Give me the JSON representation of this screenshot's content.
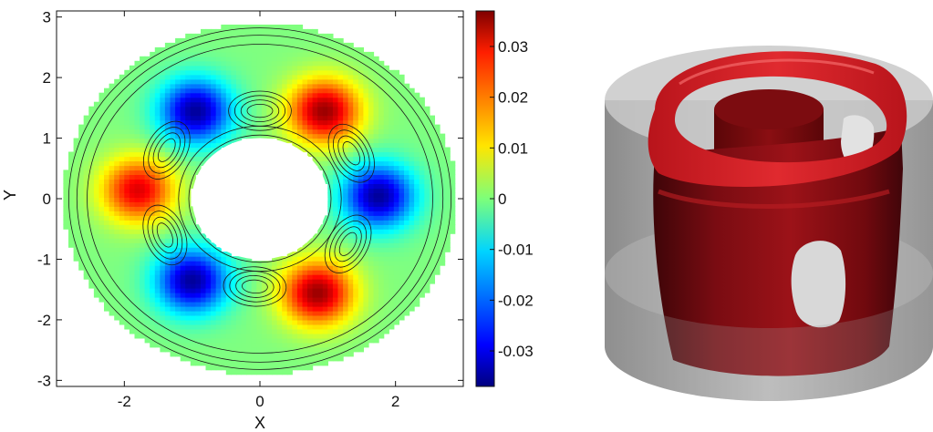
{
  "chart_data": [
    {
      "type": "heatmap",
      "xlabel": "X",
      "ylabel": "Y",
      "xlim": [
        -3,
        3
      ],
      "ylim": [
        -3.1,
        3.1
      ],
      "xticks": [
        "-2",
        "0",
        "2"
      ],
      "yticks": [
        "3",
        "2",
        "1",
        "0",
        "-1",
        "-2",
        "-3"
      ],
      "domain": {
        "shape": "annulus",
        "inner_radius": 1.0,
        "outer_radius": 2.9
      },
      "field": {
        "azimuthal_wavenumber": 3,
        "amplitude": 0.035,
        "extrema": [
          {
            "x": 0.95,
            "y": 1.45,
            "value": 0.035
          },
          {
            "x": -0.95,
            "y": 1.45,
            "value": -0.035
          },
          {
            "x": 1.75,
            "y": 0.05,
            "value": -0.035
          },
          {
            "x": -1.8,
            "y": 0.15,
            "value": 0.03
          },
          {
            "x": 0.85,
            "y": -1.55,
            "value": 0.035
          },
          {
            "x": -1.0,
            "y": -1.35,
            "value": -0.035
          }
        ]
      },
      "colorbar": {
        "min": -0.037,
        "max": 0.037,
        "colormap": "jet",
        "tick_values": [
          0.03,
          0.02,
          0.01,
          0,
          -0.01,
          -0.02,
          -0.03
        ],
        "tick_labels": [
          "0.03",
          "0.02",
          "0.01",
          "0",
          "-0.01",
          "-0.02",
          "-0.03"
        ]
      },
      "streamlines": true,
      "grid": false
    }
  ],
  "render3d": {
    "type": "isosurface-render",
    "surface_color": "#c0161c",
    "container_color": "#9a9a9a",
    "background": "#ffffff"
  },
  "colors": {
    "axis": "#111111",
    "streamline": "#1a1a1a",
    "background": "#ffffff"
  }
}
